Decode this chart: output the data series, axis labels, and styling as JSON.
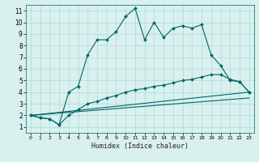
{
  "title": "",
  "xlabel": "Humidex (Indice chaleur)",
  "ylabel": "",
  "bg_color": "#d8f0ee",
  "grid_color": "#b0d8d8",
  "line_color": "#006666",
  "xlim": [
    -0.5,
    23.5
  ],
  "ylim": [
    0.5,
    11.5
  ],
  "xticks": [
    0,
    1,
    2,
    3,
    4,
    5,
    6,
    7,
    8,
    9,
    10,
    11,
    12,
    13,
    14,
    15,
    16,
    17,
    18,
    19,
    20,
    21,
    22,
    23
  ],
  "yticks": [
    1,
    2,
    3,
    4,
    5,
    6,
    7,
    8,
    9,
    10,
    11
  ],
  "line1_x": [
    0,
    1,
    2,
    3,
    4,
    5,
    6,
    7,
    8,
    9,
    10,
    11,
    12,
    13,
    14,
    15,
    16,
    17,
    18,
    19,
    20,
    21,
    22,
    23
  ],
  "line1_y": [
    2.0,
    1.8,
    1.7,
    1.2,
    4.0,
    4.5,
    7.2,
    8.5,
    8.5,
    9.2,
    10.5,
    11.2,
    8.5,
    10.0,
    8.7,
    9.5,
    9.7,
    9.5,
    9.8,
    7.2,
    6.3,
    5.0,
    4.9,
    4.0
  ],
  "line2_x": [
    0,
    1,
    2,
    3,
    4,
    5,
    6,
    7,
    8,
    9,
    10,
    11,
    12,
    13,
    14,
    15,
    16,
    17,
    18,
    19,
    20,
    21,
    22,
    23
  ],
  "line2_y": [
    2.0,
    1.8,
    1.7,
    1.2,
    2.0,
    2.5,
    3.0,
    3.2,
    3.5,
    3.7,
    4.0,
    4.2,
    4.3,
    4.5,
    4.6,
    4.8,
    5.0,
    5.1,
    5.3,
    5.5,
    5.5,
    5.1,
    4.9,
    4.0
  ],
  "line3_x": [
    0,
    23
  ],
  "line3_y": [
    2.0,
    4.0
  ],
  "line4_x": [
    0,
    23
  ],
  "line4_y": [
    2.0,
    3.5
  ],
  "marker": "D",
  "markersize": 2,
  "lw": 0.8
}
